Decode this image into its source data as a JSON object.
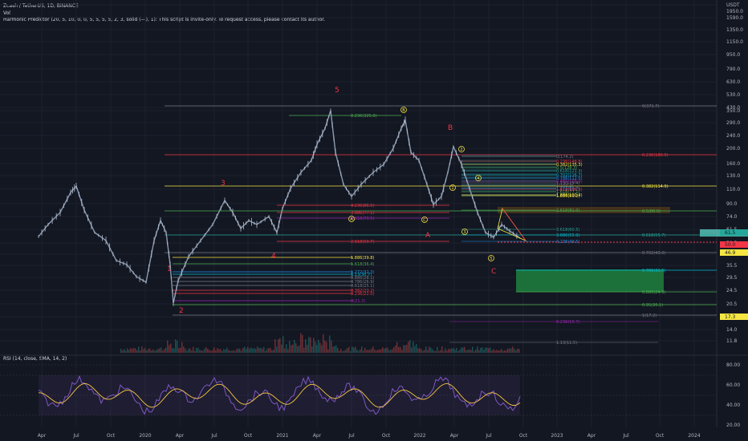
{
  "header": {
    "symbol_line": "Zcash / TetherUS, 1D, BINANCE",
    "vol_label": "Vol",
    "indicator_line": "Harmonic Predictor (20, 5, 10, 0, 0, 5, 5, 5, 5, 2, 3, solid (—), 1): This script is invite-only. To request access, please contact its author.",
    "rsi_line": "RSI (14, close, SMA, 14, 2)"
  },
  "price_axis": {
    "currency": "USDT",
    "ticks": [
      "1950.0",
      "1590.0",
      "1350.0",
      "1150.0",
      "950.0",
      "790.0",
      "630.0",
      "530.0",
      "430.0",
      "350.0",
      "290.0",
      "240.0",
      "200.0",
      "160.0",
      "130.0",
      "110.0",
      "90.0",
      "74.0",
      "61.5",
      "50.5",
      "41.0",
      "35.5",
      "29.5",
      "24.5",
      "20.5",
      "17.5",
      "14.0",
      "11.8"
    ],
    "badges": [
      {
        "text": "61.5",
        "color": "#26a69a"
      },
      {
        "text": "50.0",
        "color": "#f23645"
      },
      {
        "text": "46.9",
        "color": "#f5e642"
      },
      {
        "text": "17.3",
        "color": "#f5e642"
      }
    ]
  },
  "rsi_axis": {
    "ticks": [
      "80.00",
      "60.00",
      "40.00",
      "20.00"
    ]
  },
  "time_axis": {
    "ticks": [
      "Apr",
      "Jul",
      "Oct",
      "2020",
      "Apr",
      "Jul",
      "Oct",
      "2021",
      "Apr",
      "Jul",
      "Oct",
      "2022",
      "Apr",
      "Jul",
      "Oct",
      "2023",
      "Apr",
      "Jul",
      "Oct",
      "2024"
    ]
  },
  "waves": [
    "1",
    "2",
    "3",
    "4",
    "5",
    "A",
    "B",
    "C"
  ],
  "circle_labels": [
    "B",
    "C",
    "A",
    "1",
    "2",
    "3",
    "4",
    "5"
  ],
  "fib_labels": {
    "upper": [
      "0(371.7)",
      "0.236(180.0)",
      "0.382(114.9)",
      "0.5(80.0)",
      "0.618(55.7)",
      "0.702(43.0)",
      "0.786(31.5)",
      "0.886(24.9)",
      "0.95(20.1)",
      "1(17.2)"
    ],
    "inner": [
      "8.236(325.0)",
      "4.236(86.5)",
      "3.886(77.1)",
      "3.618(70.5)",
      "2.618(50.7)",
      "1.886(39.8)",
      "1.618(36.4)",
      "1.272(32.3)",
      "1.13(30.7)",
      "0.886(28.1)",
      "0.786(26.9)",
      "0.618(25.1)",
      "0.382(23.2)",
      "0.236(22.0)",
      "0(21.3)"
    ],
    "right": [
      "0(174.2)",
      "0.236(148.8)",
      "0.382(135.3)",
      "0.5(128.3)",
      "0.618(121.3)",
      "0.702(116.7)",
      "0.786(112.5)",
      "0.886(108.0)",
      "1(101.2)",
      "1.272(89.7)",
      "1.618(77.1)",
      "1.886(69.2)",
      "1.13(129.4)",
      "1.618(108.5)",
      "1.886(100.4)",
      "2.618(81.0)",
      "3.618(60.5)",
      "3.886(55.9)",
      "4.236(49.5)",
      "8.236(15.7)",
      "1.13(11.5)"
    ]
  }
}
